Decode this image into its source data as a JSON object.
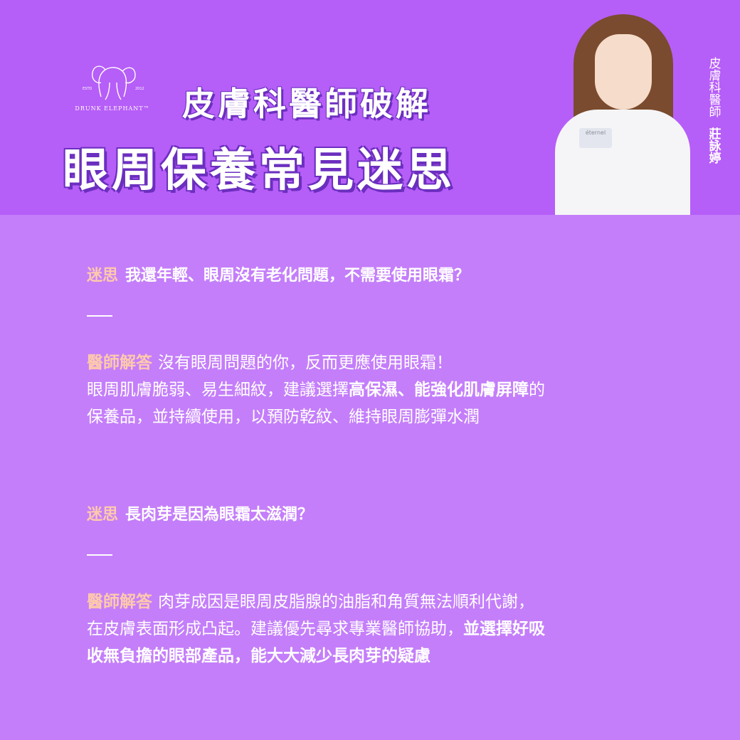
{
  "header": {
    "logo": {
      "brand": "DRUNK ELEPHANT™",
      "left_mark": "ESTD",
      "right_mark": "2012",
      "icon": "elephant-icon"
    },
    "title_line_1": "皮膚科醫師破解",
    "title_line_2": "眼周保養常見迷思",
    "side_title": "皮膚科醫師",
    "side_name": "莊詠婷",
    "portrait_badge": "éternel"
  },
  "qa": [
    {
      "myth_tag": "迷思",
      "question": "我還年輕、眼周沒有老化問題，不需要使用眼霜？",
      "answer_tag": "醫師解答",
      "line1": "沒有眼周問題的你，反而更應使用眼霜！",
      "line2_pre": "眼周肌膚脆弱、易生細紋，建議選擇",
      "line2_bold": "高保濕、能強化肌膚屏障",
      "line2_post": "的",
      "line3": "保養品，並持續使用，以預防乾紋、維持眼周膨彈水潤"
    },
    {
      "myth_tag": "迷思",
      "question": "長肉芽是因為眼霜太滋潤？",
      "answer_tag": "醫師解答",
      "line1": "肉芽成因是眼周皮脂腺的油脂和角質無法順利代謝，",
      "line2_pre": "在皮膚表面形成凸起。建議優先尋求專業醫師協助，",
      "line2_bold": "並選擇好吸",
      "line3_bold": "收無負擔的眼部產品，能大大減少長肉芽的疑慮"
    }
  ],
  "colors": {
    "header_bg": "#b65ef8",
    "body_bg": "#c47efa",
    "tag": "#ffc9ac",
    "title_shadow": "#6b2fbf"
  }
}
